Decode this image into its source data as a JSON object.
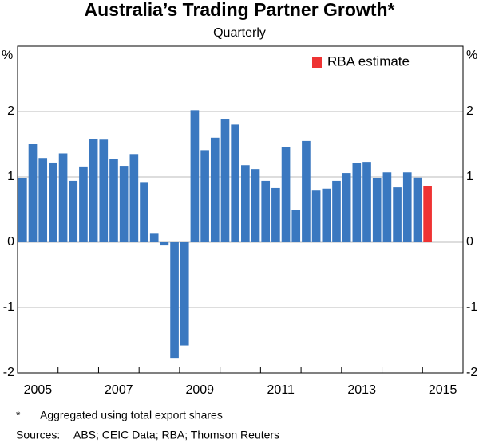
{
  "chart_data": {
    "type": "bar",
    "title": "Australia’s Trading Partner Growth*",
    "subtitle": "Quarterly",
    "y_unit": "%",
    "categories": [
      "2005",
      null,
      null,
      null,
      null,
      null,
      null,
      null,
      "2007",
      null,
      null,
      null,
      null,
      null,
      null,
      null,
      "2009",
      null,
      null,
      null,
      null,
      null,
      null,
      null,
      "2011",
      null,
      null,
      null,
      null,
      null,
      null,
      null,
      "2013",
      null,
      null,
      null,
      null,
      null,
      null,
      null,
      "2015",
      null,
      null,
      null
    ],
    "series": [
      {
        "color": "#3a78c0",
        "values": [
          0.98,
          1.5,
          1.29,
          1.22,
          1.36,
          0.94,
          1.16,
          1.58,
          1.57,
          1.28,
          1.17,
          1.35,
          0.91,
          0.13,
          -0.05,
          -1.77,
          -1.58,
          2.02,
          1.41,
          1.6,
          1.89,
          1.8,
          1.18,
          1.12,
          0.94,
          0.83,
          1.46,
          0.49,
          1.55,
          0.79,
          0.82,
          0.94,
          1.06,
          1.21,
          1.23,
          0.98,
          1.07,
          0.84,
          1.07,
          0.99,
          null,
          null,
          null,
          null
        ]
      },
      {
        "name": "RBA estimate",
        "color": "#ee3333",
        "values": [
          null,
          null,
          null,
          null,
          null,
          null,
          null,
          null,
          null,
          null,
          null,
          null,
          null,
          null,
          null,
          null,
          null,
          null,
          null,
          null,
          null,
          null,
          null,
          null,
          null,
          null,
          null,
          null,
          null,
          null,
          null,
          null,
          null,
          null,
          null,
          null,
          null,
          null,
          null,
          null,
          0.86,
          null,
          null,
          null
        ]
      }
    ],
    "ylim": [
      -2,
      3
    ],
    "yticks": [
      -2,
      -1,
      0,
      1,
      2
    ],
    "grid": true,
    "notes": [
      {
        "marker": "*",
        "text": "Aggregated using total export shares"
      },
      {
        "marker": "Sources:",
        "text": "ABS; CEIC Data; RBA; Thomson Reuters"
      }
    ]
  }
}
